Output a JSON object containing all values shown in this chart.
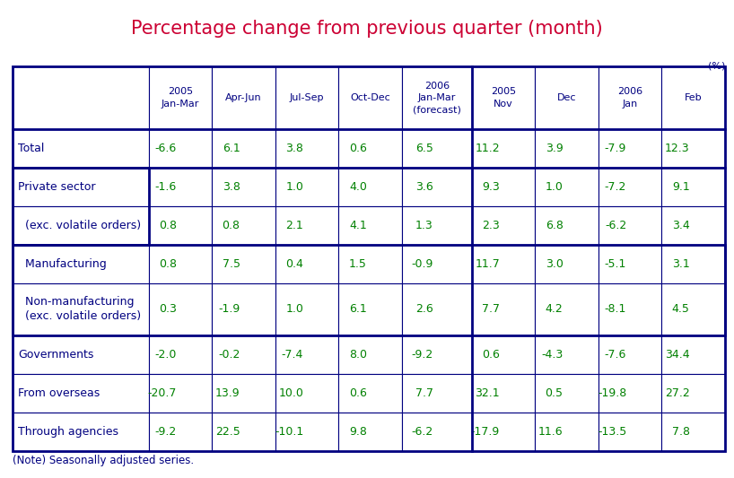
{
  "title": "Percentage change from previous quarter (month)",
  "title_color": "#cc0033",
  "unit_label": "(%)",
  "note": "(Note) Seasonally adjusted series.",
  "col_headers": [
    "2005\nJan-Mar",
    "Apr-Jun",
    "Jul-Sep",
    "Oct-Dec",
    "2006\nJan-Mar\n(forecast)",
    "2005\nNov",
    "Dec",
    "2006\nJan",
    "Feb"
  ],
  "row_labels": [
    "Total",
    "Private sector",
    "  (exc. volatile orders)",
    "  Manufacturing",
    "  Non-manufacturing\n  (exc. volatile orders)",
    "Governments",
    "From overseas",
    "Through agencies"
  ],
  "data": [
    [
      "-6.6",
      "6.1",
      "3.8",
      "0.6",
      "6.5",
      "11.2",
      "3.9",
      "-7.9",
      "12.3"
    ],
    [
      "-1.6",
      "3.8",
      "1.0",
      "4.0",
      "3.6",
      "9.3",
      "1.0",
      "-7.2",
      "9.1"
    ],
    [
      "0.8",
      "0.8",
      "2.1",
      "4.1",
      "1.3",
      "2.3",
      "6.8",
      "-6.2",
      "3.4"
    ],
    [
      "0.8",
      "7.5",
      "0.4",
      "1.5",
      "-0.9",
      "11.7",
      "3.0",
      "-5.1",
      "3.1"
    ],
    [
      "0.3",
      "-1.9",
      "1.0",
      "6.1",
      "2.6",
      "7.7",
      "4.2",
      "-8.1",
      "4.5"
    ],
    [
      "-2.0",
      "-0.2",
      "-7.4",
      "8.0",
      "-9.2",
      "0.6",
      "-4.3",
      "-7.6",
      "34.4"
    ],
    [
      "-20.7",
      "13.9",
      "10.0",
      "0.6",
      "7.7",
      "32.1",
      "0.5",
      "-19.8",
      "27.2"
    ],
    [
      "-9.2",
      "22.5",
      "-10.1",
      "9.8",
      "-6.2",
      "-17.9",
      "11.6",
      "-13.5",
      "7.8"
    ]
  ],
  "header_color": "#000080",
  "data_color": "#008000",
  "row_label_color": "#000080",
  "border_color": "#000080",
  "bg_color": "#ffffff",
  "figsize": [
    8.18,
    5.33
  ],
  "dpi": 100
}
